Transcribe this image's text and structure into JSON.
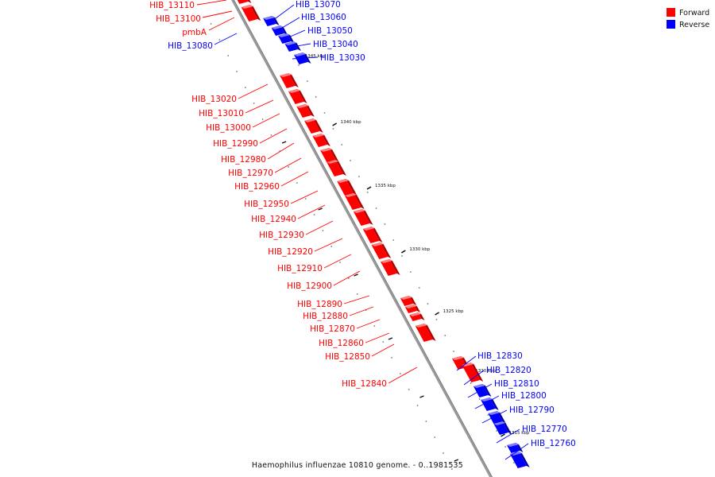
{
  "colors": {
    "forward": "#ff0000",
    "forward_side": "#b00000",
    "forward_top": "#ff8080",
    "reverse": "#0000ff",
    "reverse_side": "#0000a8",
    "reverse_top": "#8080ff",
    "axis": "#999999",
    "axis_shadow": "#444444",
    "background": "#ffffff"
  },
  "legend": [
    {
      "label": "Forward",
      "strand": "forward"
    },
    {
      "label": "Reverse",
      "strand": "reverse"
    }
  ],
  "caption": "Haemophilus influenzae 10810 genome. - 0..1981535",
  "ticks": [
    "1345 kbp",
    "1340 kbp",
    "1335 kbp",
    "1330 kbp",
    "1325 kbp",
    "1320 kbp",
    "1315 kbp"
  ],
  "genes": [
    {
      "name": "HIB_13110",
      "strand": "forward"
    },
    {
      "name": "HIB_13100",
      "strand": "forward"
    },
    {
      "name": "pmbA",
      "strand": "forward"
    },
    {
      "name": "HIB_13080",
      "strand": "reverse"
    },
    {
      "name": "HIB_13070",
      "strand": "reverse"
    },
    {
      "name": "HIB_13060",
      "strand": "reverse"
    },
    {
      "name": "HIB_13050",
      "strand": "reverse"
    },
    {
      "name": "HIB_13040",
      "strand": "reverse"
    },
    {
      "name": "HIB_13030",
      "strand": "reverse"
    },
    {
      "name": "HIB_13020",
      "strand": "forward"
    },
    {
      "name": "HIB_13010",
      "strand": "forward"
    },
    {
      "name": "HIB_13000",
      "strand": "forward"
    },
    {
      "name": "HIB_12990",
      "strand": "forward"
    },
    {
      "name": "HIB_12980",
      "strand": "forward"
    },
    {
      "name": "HIB_12970",
      "strand": "forward"
    },
    {
      "name": "HIB_12960",
      "strand": "forward"
    },
    {
      "name": "HIB_12950",
      "strand": "forward"
    },
    {
      "name": "HIB_12940",
      "strand": "forward"
    },
    {
      "name": "HIB_12930",
      "strand": "forward"
    },
    {
      "name": "HIB_12920",
      "strand": "forward"
    },
    {
      "name": "HIB_12910",
      "strand": "forward"
    },
    {
      "name": "HIB_12900",
      "strand": "forward"
    },
    {
      "name": "HIB_12890",
      "strand": "forward"
    },
    {
      "name": "HIB_12880",
      "strand": "forward"
    },
    {
      "name": "HIB_12870",
      "strand": "forward"
    },
    {
      "name": "HIB_12860",
      "strand": "forward"
    },
    {
      "name": "HIB_12850",
      "strand": "forward"
    },
    {
      "name": "HIB_12840",
      "strand": "forward"
    },
    {
      "name": "HIB_12830",
      "strand": "reverse"
    },
    {
      "name": "HIB_12820",
      "strand": "reverse"
    },
    {
      "name": "HIB_12810",
      "strand": "reverse"
    },
    {
      "name": "HIB_12800",
      "strand": "reverse"
    },
    {
      "name": "HIB_12790",
      "strand": "reverse"
    },
    {
      "name": "HIB_12770",
      "strand": "reverse"
    },
    {
      "name": "HIB_12760",
      "strand": "reverse"
    }
  ]
}
